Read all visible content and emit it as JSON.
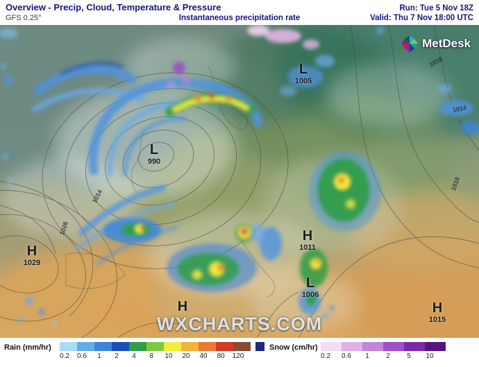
{
  "header": {
    "title": "Overview - Precip, Cloud, Temperature & Pressure",
    "model": "GFS 0.25°",
    "subtitle": "Instantaneous precipitation rate",
    "run": "Run: Tue 5 Nov 18Z",
    "valid": "Valid: Thu 7 Nov 18:00 UTC"
  },
  "branding": {
    "logo_text": "MetDesk",
    "watermark": "WXCHARTS.COM"
  },
  "map": {
    "pressure_centers": [
      {
        "letter": "L",
        "value": "990"
      },
      {
        "letter": "L",
        "value": "1005"
      },
      {
        "letter": "H",
        "value": "1029"
      },
      {
        "letter": "H",
        "value": "1011"
      },
      {
        "letter": "L",
        "value": "1006"
      },
      {
        "letter": "H",
        "value": ""
      },
      {
        "letter": "H",
        "value": "1015"
      }
    ],
    "isobar_labels": [
      "1018",
      "1014",
      "1018",
      "1014",
      "1026"
    ]
  },
  "legend": {
    "rain": {
      "label": "Rain (mm/hr)",
      "ticks": [
        "0.2",
        "0.6",
        "1",
        "2",
        "4",
        "8",
        "10",
        "20",
        "40",
        "80",
        "120"
      ],
      "colors": [
        "#aadcf5",
        "#62aee6",
        "#3c86dc",
        "#1c4fb8",
        "#2f9e46",
        "#7dc93e",
        "#f2ef3a",
        "#f2b53a",
        "#ea7a2e",
        "#d23c28",
        "#8a4a32"
      ]
    },
    "snow": {
      "label": "Snow (cm/hr)",
      "ticks": [
        "0.2",
        "0.6",
        "1",
        "2",
        "5",
        "10"
      ],
      "colors": [
        "#f4dcf2",
        "#dfb1e6",
        "#c285d8",
        "#a14ec8",
        "#7d28a8",
        "#55137d"
      ]
    }
  }
}
